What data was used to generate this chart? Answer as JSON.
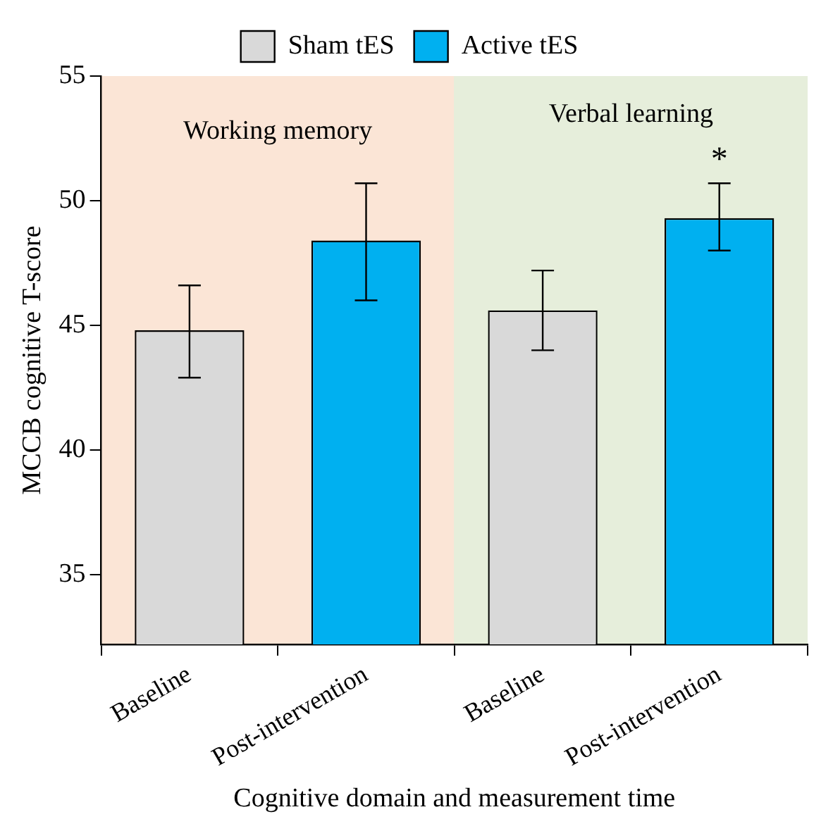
{
  "chart_data": {
    "type": "bar",
    "xlabel": "Cognitive domain and measurement time",
    "ylabel": "MCCB cognitive T-score",
    "categories": [
      "Baseline",
      "Post-intervention",
      "Baseline",
      "Post-intervention"
    ],
    "series": [
      {
        "name": "Sham tES",
        "color": "#d9d9d9",
        "values": [
          44.8,
          null,
          45.6,
          null
        ],
        "errors": [
          [
            42.9,
            46.6
          ],
          null,
          [
            44.0,
            47.2
          ],
          null
        ]
      },
      {
        "name": "Active tES",
        "color": "#00b0f0",
        "values": [
          null,
          48.4,
          null,
          49.3
        ],
        "errors": [
          null,
          [
            46.0,
            50.7
          ],
          null,
          [
            48.0,
            50.7
          ]
        ]
      }
    ],
    "ylim": [
      32.2,
      55
    ],
    "yticks": [
      35,
      40,
      45,
      50,
      55
    ],
    "grid": false,
    "legend": "top",
    "annotations": [
      "Working memory",
      "Verbal learning",
      "*"
    ]
  }
}
